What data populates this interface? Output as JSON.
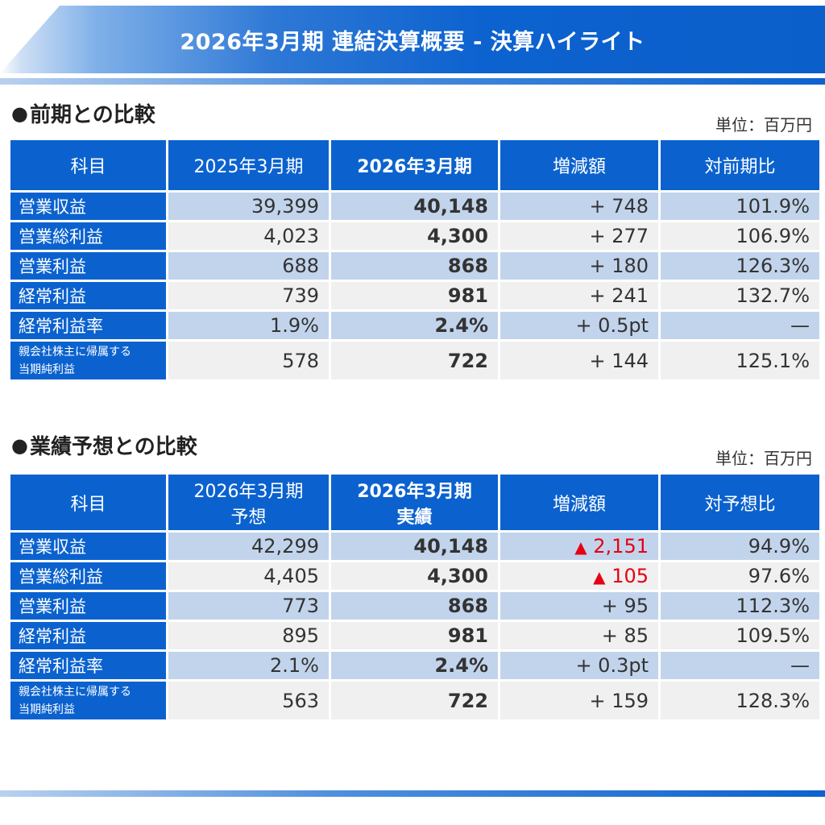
{
  "header": {
    "title": "2026年3月期 連結決算概要 - 決算ハイライト"
  },
  "section1": {
    "title": "前期との比較",
    "unit": "単位：百万円",
    "columns": [
      "科目",
      "2025年3月期",
      "2026年3月期",
      "増減額",
      "対前期比"
    ],
    "rows": [
      {
        "label": "営業収益",
        "prev": "39,399",
        "curr": "40,148",
        "diff": "+ 748",
        "ratio": "101.9%"
      },
      {
        "label": "営業総利益",
        "prev": "4,023",
        "curr": "4,300",
        "diff": "+ 277",
        "ratio": "106.9%"
      },
      {
        "label": "営業利益",
        "prev": "688",
        "curr": "868",
        "diff": "+ 180",
        "ratio": "126.3%"
      },
      {
        "label": "経常利益",
        "prev": "739",
        "curr": "981",
        "diff": "+ 241",
        "ratio": "132.7%"
      },
      {
        "label": "経常利益率",
        "prev": "1.9%",
        "curr": "2.4%",
        "diff": "+ 0.5pt",
        "ratio": "—"
      },
      {
        "label1": "親会社株主に帰属する",
        "label2": "当期純利益",
        "prev": "578",
        "curr": "722",
        "diff": "+ 144",
        "ratio": "125.1%"
      }
    ]
  },
  "section2": {
    "title": "業績予想との比較",
    "unit": "単位：百万円",
    "columns": {
      "item": "科目",
      "forecast_line1": "2026年3月期",
      "forecast_line2": "予想",
      "actual_line1": "2026年3月期",
      "actual_line2": "実績",
      "diff": "増減額",
      "ratio": "対予想比"
    },
    "rows": [
      {
        "label": "営業収益",
        "forecast": "42,299",
        "actual": "40,148",
        "diff_mark": "▲",
        "diff": "2,151",
        "ratio": "94.9%"
      },
      {
        "label": "営業総利益",
        "forecast": "4,405",
        "actual": "4,300",
        "diff_mark": "▲",
        "diff": "105",
        "ratio": "97.6%"
      },
      {
        "label": "営業利益",
        "forecast": "773",
        "actual": "868",
        "diff": "+ 95",
        "ratio": "112.3%"
      },
      {
        "label": "経常利益",
        "forecast": "895",
        "actual": "981",
        "diff": "+ 85",
        "ratio": "109.5%"
      },
      {
        "label": "経常利益率",
        "forecast": "2.1%",
        "actual": "2.4%",
        "diff": "+ 0.3pt",
        "ratio": "—"
      },
      {
        "label1": "親会社株主に帰属する",
        "label2": "当期純利益",
        "forecast": "563",
        "actual": "722",
        "diff": "+ 159",
        "ratio": "128.3%"
      }
    ]
  },
  "colors": {
    "header_blue": "#0b62cf",
    "row_blue": "#c2d4ec",
    "row_gray": "#f0f0f0",
    "negative_red": "#e60012"
  }
}
